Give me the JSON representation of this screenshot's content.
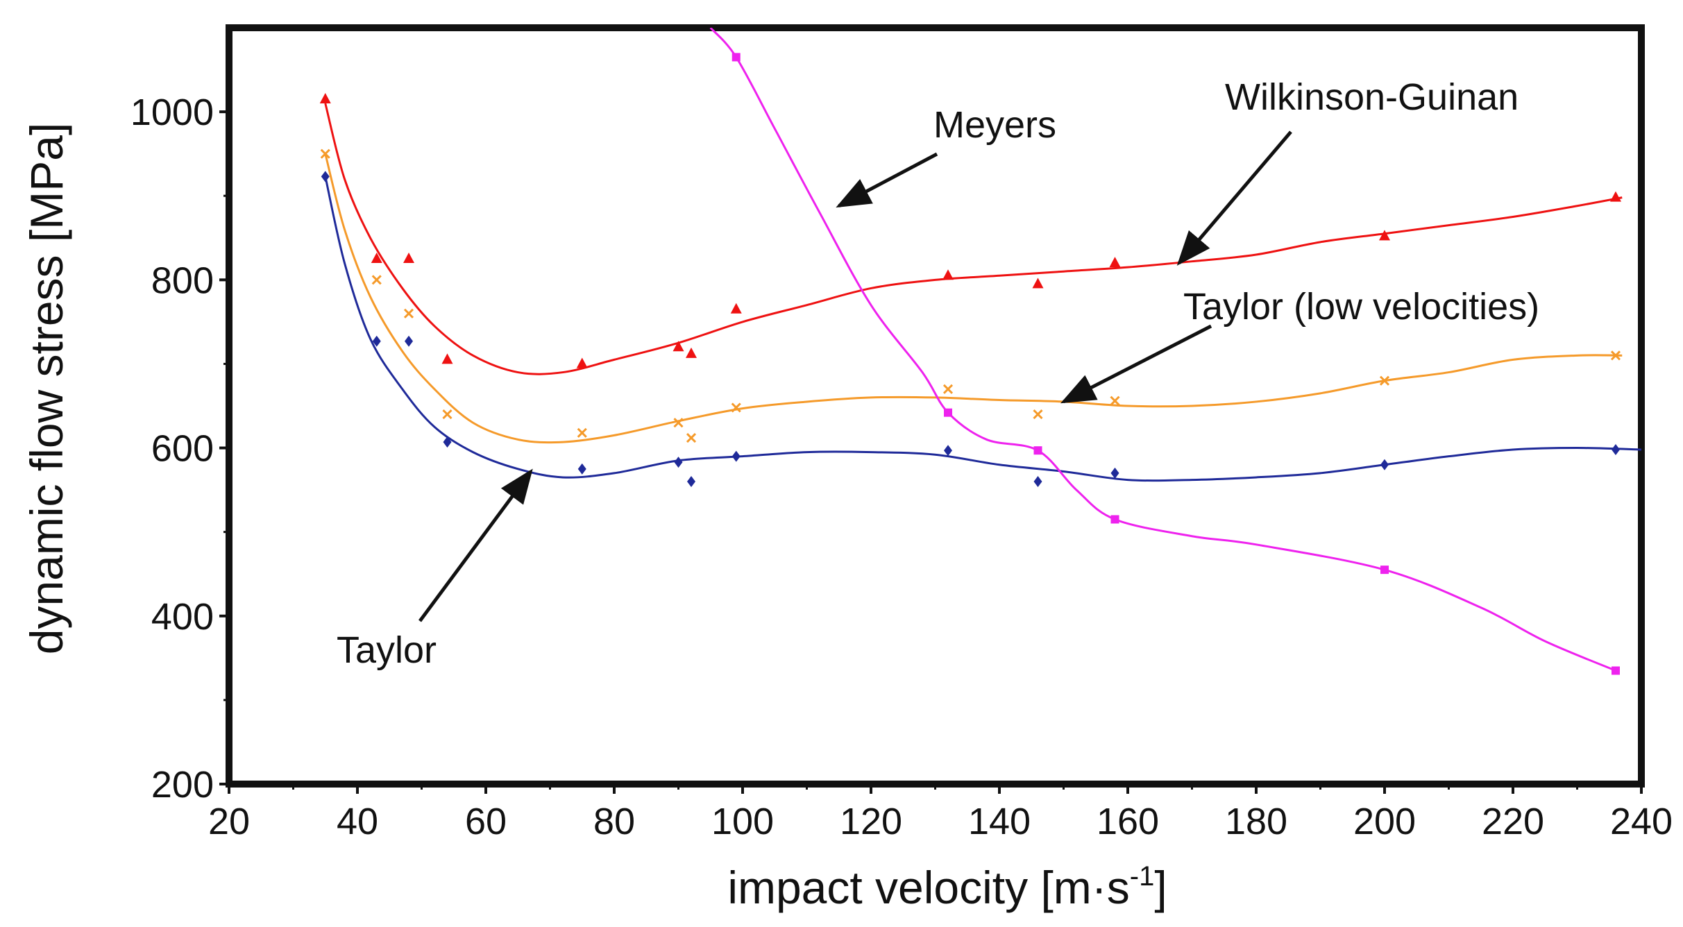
{
  "chart_data": {
    "type": "scatter",
    "title": "",
    "xlabel": "impact velocity [m·s",
    "xlabel_superscript": "-1",
    "xlabel_suffix": "]",
    "ylabel": "dynamic flow stress [MPa]",
    "xlim": [
      20,
      240
    ],
    "ylim": [
      200,
      1100
    ],
    "x_ticks": [
      20,
      40,
      60,
      80,
      100,
      120,
      140,
      160,
      180,
      200,
      220,
      240
    ],
    "y_ticks": [
      200,
      400,
      600,
      800,
      1000
    ],
    "grid": false,
    "legend": "none",
    "series": [
      {
        "name": "Wilkinson-Guinan",
        "color": "#ee1111",
        "marker": "triangle",
        "points": [
          [
            35,
            1015
          ],
          [
            43,
            825
          ],
          [
            48,
            825
          ],
          [
            54,
            705
          ],
          [
            75,
            700
          ],
          [
            90,
            720
          ],
          [
            92,
            712
          ],
          [
            99,
            765
          ],
          [
            132,
            805
          ],
          [
            146,
            795
          ],
          [
            158,
            820
          ],
          [
            200,
            852
          ],
          [
            236,
            898
          ]
        ],
        "fit": [
          [
            35,
            1010
          ],
          [
            38,
            920
          ],
          [
            42,
            850
          ],
          [
            47,
            790
          ],
          [
            52,
            745
          ],
          [
            58,
            710
          ],
          [
            65,
            690
          ],
          [
            72,
            690
          ],
          [
            80,
            705
          ],
          [
            90,
            725
          ],
          [
            100,
            750
          ],
          [
            110,
            770
          ],
          [
            120,
            790
          ],
          [
            130,
            800
          ],
          [
            140,
            805
          ],
          [
            150,
            810
          ],
          [
            160,
            815
          ],
          [
            170,
            822
          ],
          [
            180,
            830
          ],
          [
            190,
            845
          ],
          [
            200,
            855
          ],
          [
            210,
            865
          ],
          [
            220,
            875
          ],
          [
            230,
            888
          ],
          [
            237,
            898
          ]
        ]
      },
      {
        "name": "Taylor (low velocities)",
        "color": "#f59a2a",
        "marker": "cross",
        "points": [
          [
            35,
            950
          ],
          [
            43,
            800
          ],
          [
            48,
            760
          ],
          [
            54,
            640
          ],
          [
            75,
            618
          ],
          [
            90,
            630
          ],
          [
            92,
            612
          ],
          [
            99,
            648
          ],
          [
            132,
            670
          ],
          [
            146,
            640
          ],
          [
            158,
            656
          ],
          [
            200,
            680
          ],
          [
            236,
            710
          ]
        ],
        "fit": [
          [
            35,
            950
          ],
          [
            38,
            860
          ],
          [
            42,
            780
          ],
          [
            47,
            715
          ],
          [
            52,
            670
          ],
          [
            58,
            630
          ],
          [
            65,
            610
          ],
          [
            72,
            607
          ],
          [
            80,
            615
          ],
          [
            90,
            632
          ],
          [
            100,
            647
          ],
          [
            110,
            655
          ],
          [
            120,
            660
          ],
          [
            130,
            660
          ],
          [
            140,
            657
          ],
          [
            150,
            655
          ],
          [
            160,
            650
          ],
          [
            170,
            650
          ],
          [
            180,
            655
          ],
          [
            190,
            665
          ],
          [
            200,
            680
          ],
          [
            210,
            690
          ],
          [
            220,
            705
          ],
          [
            230,
            710
          ],
          [
            237,
            710
          ]
        ]
      },
      {
        "name": "Taylor",
        "color": "#1f2a99",
        "marker": "diamond",
        "points": [
          [
            35,
            923
          ],
          [
            43,
            727
          ],
          [
            48,
            727
          ],
          [
            54,
            607
          ],
          [
            75,
            575
          ],
          [
            90,
            583
          ],
          [
            92,
            560
          ],
          [
            99,
            590
          ],
          [
            132,
            597
          ],
          [
            146,
            560
          ],
          [
            158,
            570
          ],
          [
            200,
            580
          ],
          [
            236,
            598
          ]
        ],
        "fit": [
          [
            35,
            923
          ],
          [
            38,
            820
          ],
          [
            42,
            730
          ],
          [
            47,
            670
          ],
          [
            52,
            625
          ],
          [
            58,
            595
          ],
          [
            65,
            575
          ],
          [
            72,
            565
          ],
          [
            80,
            570
          ],
          [
            90,
            585
          ],
          [
            100,
            590
          ],
          [
            110,
            595
          ],
          [
            120,
            595
          ],
          [
            130,
            592
          ],
          [
            140,
            580
          ],
          [
            150,
            572
          ],
          [
            160,
            562
          ],
          [
            170,
            562
          ],
          [
            180,
            565
          ],
          [
            190,
            570
          ],
          [
            200,
            580
          ],
          [
            210,
            590
          ],
          [
            220,
            598
          ],
          [
            230,
            600
          ],
          [
            240,
            598
          ]
        ]
      },
      {
        "name": "Meyers",
        "color": "#ee22ee",
        "marker": "square",
        "points": [
          [
            99,
            1065
          ],
          [
            132,
            642
          ],
          [
            146,
            597
          ],
          [
            158,
            515
          ],
          [
            200,
            455
          ],
          [
            236,
            335
          ]
        ],
        "fit": [
          [
            95,
            1100
          ],
          [
            99,
            1065
          ],
          [
            105,
            980
          ],
          [
            112,
            880
          ],
          [
            120,
            770
          ],
          [
            128,
            690
          ],
          [
            132,
            642
          ],
          [
            138,
            610
          ],
          [
            146,
            597
          ],
          [
            152,
            550
          ],
          [
            158,
            515
          ],
          [
            170,
            495
          ],
          [
            180,
            485
          ],
          [
            200,
            455
          ],
          [
            215,
            410
          ],
          [
            225,
            370
          ],
          [
            236,
            335
          ]
        ]
      }
    ],
    "annotations": [
      {
        "text": "Wilkinson-Guinan",
        "points_to": [
          168,
          820
        ]
      },
      {
        "text": "Meyers",
        "points_to": [
          115,
          888
        ]
      },
      {
        "text": "Taylor (low velocities)",
        "points_to": [
          150,
          655
        ]
      },
      {
        "text": "Taylor",
        "points_to": [
          67,
          572
        ]
      }
    ]
  }
}
